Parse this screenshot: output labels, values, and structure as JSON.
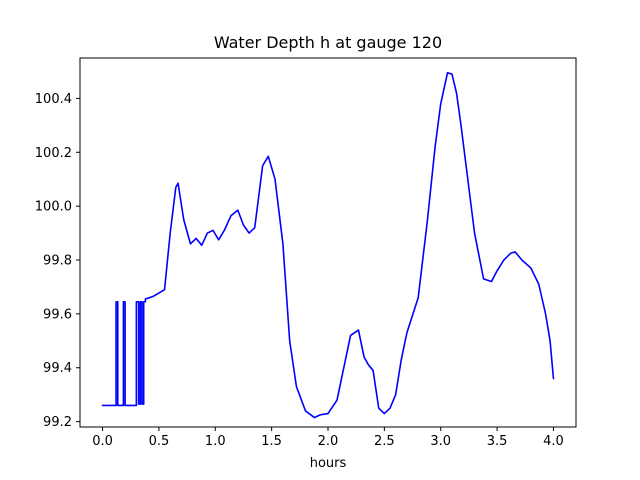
{
  "chart_data": {
    "type": "line",
    "title": "Water Depth h at gauge 120",
    "xlabel": "hours",
    "ylabel": "",
    "xlim": [
      -0.2,
      4.2
    ],
    "ylim": [
      99.18,
      100.55
    ],
    "xticks": [
      0.0,
      0.5,
      1.0,
      1.5,
      2.0,
      2.5,
      3.0,
      3.5,
      4.0
    ],
    "xtick_labels": [
      "0.0",
      "0.5",
      "1.0",
      "1.5",
      "2.0",
      "2.5",
      "3.0",
      "3.5",
      "4.0"
    ],
    "yticks": [
      99.2,
      99.4,
      99.6,
      99.8,
      100.0,
      100.2,
      100.4
    ],
    "ytick_labels": [
      "99.2",
      "99.4",
      "99.6",
      "99.8",
      "100.0",
      "100.2",
      "100.4"
    ],
    "grid": false,
    "series": [
      {
        "color": "#0000ff",
        "x": [
          0.0,
          0.12,
          0.12,
          0.135,
          0.135,
          0.185,
          0.185,
          0.2,
          0.2,
          0.3,
          0.3,
          0.32,
          0.32,
          0.335,
          0.335,
          0.35,
          0.35,
          0.365,
          0.365,
          0.38,
          0.38,
          0.45,
          0.55,
          0.6,
          0.65,
          0.67,
          0.72,
          0.78,
          0.83,
          0.88,
          0.93,
          0.98,
          1.03,
          1.08,
          1.14,
          1.2,
          1.25,
          1.3,
          1.35,
          1.42,
          1.47,
          1.53,
          1.6,
          1.66,
          1.72,
          1.8,
          1.88,
          1.93,
          2.0,
          2.08,
          2.15,
          2.2,
          2.27,
          2.32,
          2.36,
          2.4,
          2.45,
          2.5,
          2.55,
          2.6,
          2.65,
          2.7,
          2.8,
          2.88,
          2.95,
          3.0,
          3.06,
          3.1,
          3.14,
          3.18,
          3.24,
          3.3,
          3.38,
          3.45,
          3.5,
          3.56,
          3.62,
          3.66,
          3.72,
          3.8,
          3.87,
          3.93,
          3.97,
          4.0
        ],
        "y": [
          99.26,
          99.26,
          99.645,
          99.645,
          99.26,
          99.26,
          99.645,
          99.645,
          99.26,
          99.26,
          99.645,
          99.645,
          99.265,
          99.265,
          99.645,
          99.645,
          99.265,
          99.265,
          99.645,
          99.645,
          99.655,
          99.665,
          99.69,
          99.9,
          100.07,
          100.085,
          99.95,
          99.86,
          99.88,
          99.855,
          99.9,
          99.91,
          99.875,
          99.91,
          99.965,
          99.985,
          99.93,
          99.9,
          99.92,
          100.15,
          100.185,
          100.1,
          99.86,
          99.5,
          99.33,
          99.24,
          99.215,
          99.225,
          99.23,
          99.28,
          99.42,
          99.52,
          99.54,
          99.44,
          99.41,
          99.39,
          99.25,
          99.23,
          99.25,
          99.3,
          99.43,
          99.53,
          99.66,
          99.94,
          100.22,
          100.38,
          100.495,
          100.49,
          100.42,
          100.3,
          100.1,
          99.9,
          99.73,
          99.72,
          99.76,
          99.8,
          99.825,
          99.83,
          99.8,
          99.77,
          99.71,
          99.6,
          99.5,
          99.36
        ]
      }
    ]
  }
}
